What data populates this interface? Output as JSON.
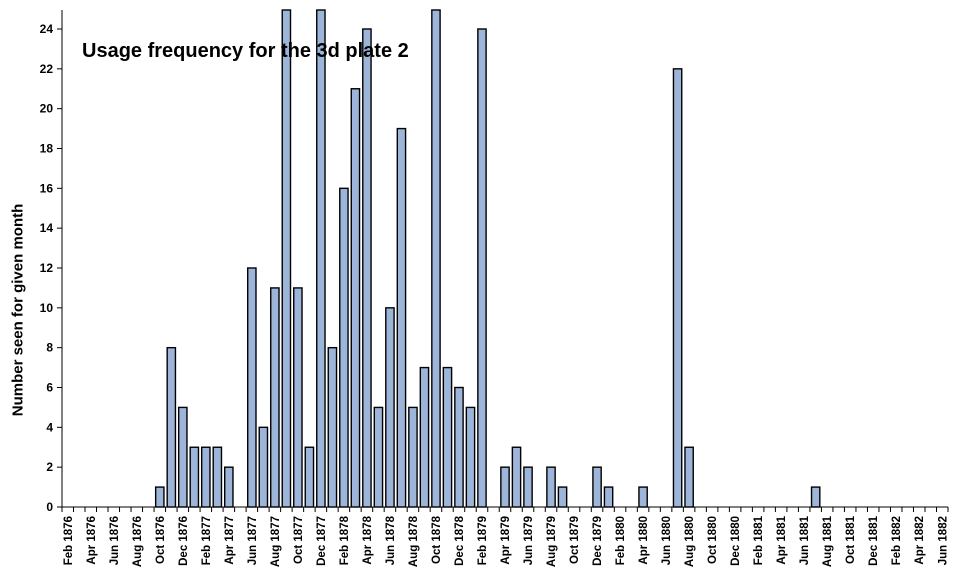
{
  "chart_data": {
    "type": "bar",
    "title": "Usage frequency for the 3d plate 2",
    "xlabel": "",
    "ylabel": "Number seen for given month",
    "ylim": [
      0,
      24
    ],
    "yticks": [
      0,
      2,
      4,
      6,
      8,
      10,
      12,
      14,
      16,
      18,
      20,
      22,
      24
    ],
    "grid": false,
    "legend": "none",
    "bar_color": "#9db5d9",
    "x_tick_labels": [
      "Feb 1876",
      "Apr 1876",
      "Jun 1876",
      "Aug 1876",
      "Oct 1876",
      "Dec 1876",
      "Feb 1877",
      "Apr 1877",
      "Jun 1877",
      "Aug 1877",
      "Oct 1877",
      "Dec 1877",
      "Feb 1878",
      "Apr 1878",
      "Jun 1878",
      "Aug 1878",
      "Oct 1878",
      "Dec 1878",
      "Feb 1879",
      "Apr 1879",
      "Jun 1879",
      "Aug 1879",
      "Oct 1879",
      "Dec 1879",
      "Feb 1880",
      "Apr 1880",
      "Jun 1880",
      "Aug 1880",
      "Oct 1880",
      "Dec 1880",
      "Feb 1881",
      "Apr 1881",
      "Jun 1881",
      "Aug 1881",
      "Oct 1881",
      "Dec 1881",
      "Feb 1882",
      "Apr 1882",
      "Jun 1882"
    ],
    "categories": [
      "Feb 1876",
      "Mar 1876",
      "Apr 1876",
      "May 1876",
      "Jun 1876",
      "Jul 1876",
      "Aug 1876",
      "Sep 1876",
      "Oct 1876",
      "Nov 1876",
      "Dec 1876",
      "Jan 1877",
      "Feb 1877",
      "Mar 1877",
      "Apr 1877",
      "May 1877",
      "Jun 1877",
      "Jul 1877",
      "Aug 1877",
      "Sep 1877",
      "Oct 1877",
      "Nov 1877",
      "Dec 1877",
      "Jan 1878",
      "Feb 1878",
      "Mar 1878",
      "Apr 1878",
      "May 1878",
      "Jun 1878",
      "Jul 1878",
      "Aug 1878",
      "Sep 1878",
      "Oct 1878",
      "Nov 1878",
      "Dec 1878",
      "Jan 1879",
      "Feb 1879",
      "Mar 1879",
      "Apr 1879",
      "May 1879",
      "Jun 1879",
      "Jul 1879",
      "Aug 1879",
      "Sep 1879",
      "Oct 1879",
      "Nov 1879",
      "Dec 1879",
      "Jan 1880",
      "Feb 1880",
      "Mar 1880",
      "Apr 1880",
      "May 1880",
      "Jun 1880",
      "Jul 1880",
      "Aug 1880",
      "Sep 1880",
      "Oct 1880",
      "Nov 1880",
      "Dec 1880",
      "Jan 1881",
      "Feb 1881",
      "Mar 1881",
      "Apr 1881",
      "May 1881",
      "Jun 1881",
      "Jul 1881",
      "Aug 1881",
      "Sep 1881",
      "Oct 1881",
      "Nov 1881",
      "Dec 1881",
      "Jan 1882",
      "Feb 1882",
      "Mar 1882",
      "Apr 1882",
      "May 1882",
      "Jun 1882"
    ],
    "values": [
      0,
      0,
      0,
      0,
      0,
      0,
      0,
      0,
      1,
      8,
      5,
      3,
      3,
      3,
      2,
      0,
      12,
      4,
      11,
      25,
      11,
      3,
      25,
      8,
      16,
      21,
      24,
      5,
      10,
      19,
      5,
      7,
      25,
      7,
      6,
      5,
      24,
      0,
      2,
      3,
      2,
      0,
      2,
      1,
      0,
      0,
      2,
      1,
      0,
      0,
      1,
      0,
      0,
      22,
      3,
      0,
      0,
      0,
      0,
      0,
      0,
      0,
      0,
      0,
      0,
      1,
      0,
      0,
      0,
      0,
      0,
      0,
      0,
      0,
      0,
      0,
      0
    ]
  }
}
